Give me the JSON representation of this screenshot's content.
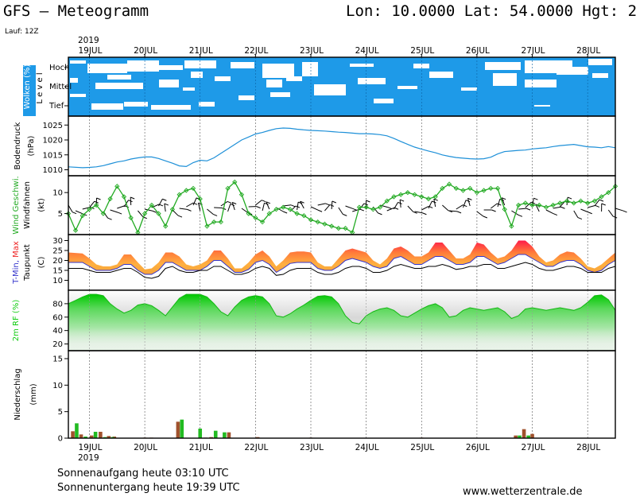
{
  "header": {
    "title": "GFS – Meteogramm",
    "location": "Lon: 10.0000  Lat: 54.0000  Hgt: 2",
    "run": "Lauf: 12Z",
    "year_top": "2019",
    "year_bottom": "2019"
  },
  "footer": {
    "sunrise": "Sonnenaufgang heute 03:10 UTC",
    "sunset": "Sonnenuntergang heute 19:39 UTC",
    "website": "www.wetterzentrale.de"
  },
  "colors": {
    "cloud": "#1e9ae8",
    "pressure": "#1e90d8",
    "wind": "#22aa22",
    "dew": "#000000",
    "tmin": "#3333cc",
    "humidity": "#11cc11",
    "precip_brown": "#a0522d",
    "precip_green": "#22bb22"
  },
  "chart_data": [
    {
      "type": "heatmap",
      "name": "clouds",
      "ylabel": "Wolken (%)",
      "ylabel2": "L e v e l",
      "levels": [
        "Hoch",
        "Mittel",
        "Tief"
      ],
      "x_start_day": 19,
      "x_end_day": 28,
      "categories": [
        "19JUL",
        "20JUL",
        "21JUL",
        "22JUL",
        "23JUL",
        "24JUL",
        "25JUL",
        "26JUL",
        "27JUL",
        "28JUL"
      ]
    },
    {
      "type": "line",
      "name": "pressure",
      "ylabel": "Bodendruck",
      "ylabel2": "(hPa)",
      "ylim": [
        1008,
        1028
      ],
      "yticks": [
        1010,
        1015,
        1020,
        1025
      ],
      "x": [
        18.62,
        18.875,
        19.0,
        19.125,
        19.25,
        19.375,
        19.5,
        19.625,
        19.75,
        19.875,
        20.0,
        20.125,
        20.25,
        20.375,
        20.5,
        20.625,
        20.75,
        20.875,
        21.0,
        21.125,
        21.25,
        21.375,
        21.5,
        21.625,
        21.75,
        21.875,
        22.0,
        22.125,
        22.25,
        22.375,
        22.5,
        22.625,
        22.75,
        22.875,
        23.0,
        23.125,
        23.25,
        23.375,
        23.5,
        23.625,
        23.75,
        23.875,
        24.0,
        24.125,
        24.25,
        24.375,
        24.5,
        24.625,
        24.75,
        24.875,
        25.0,
        25.125,
        25.25,
        25.375,
        25.5,
        25.625,
        25.75,
        25.875,
        26.0,
        26.125,
        26.25,
        26.375,
        26.5,
        26.625,
        26.75,
        26.875,
        27.0,
        27.125,
        27.25,
        27.375,
        27.5,
        27.625,
        27.75,
        27.875,
        28.0,
        28.125,
        28.25,
        28.375,
        28.5
      ],
      "values": [
        1011,
        1010.7,
        1010.8,
        1011,
        1011.4,
        1012,
        1012.6,
        1013,
        1013.6,
        1014,
        1014.3,
        1014.3,
        1013.8,
        1013,
        1012.2,
        1011.3,
        1011.1,
        1012.4,
        1013.2,
        1013,
        1014,
        1015.5,
        1017,
        1018.5,
        1020,
        1021,
        1022,
        1022.5,
        1023.2,
        1023.8,
        1024,
        1023.9,
        1023.6,
        1023.4,
        1023.2,
        1023.1,
        1023,
        1022.8,
        1022.6,
        1022.5,
        1022.3,
        1022.1,
        1022.1,
        1022,
        1021.8,
        1021.4,
        1020.5,
        1019.5,
        1018.5,
        1017.6,
        1016.9,
        1016.3,
        1015.7,
        1015,
        1014.5,
        1014.1,
        1013.9,
        1013.7,
        1013.6,
        1013.7,
        1014.2,
        1015.3,
        1016.1,
        1016.3,
        1016.5,
        1016.6,
        1017,
        1017.2,
        1017.4,
        1017.8,
        1018.1,
        1018.3,
        1018.5,
        1018.1,
        1017.7,
        1017.6,
        1017.4,
        1017.8,
        1017.4
      ]
    },
    {
      "type": "line",
      "name": "wind",
      "ylabel": "Wind Geschwi.",
      "ylabel2": "Windfahnen",
      "ylabel3": "(kt)",
      "ylim": [
        0,
        14
      ],
      "yticks": [
        5,
        10
      ],
      "x": [
        18.62,
        18.75,
        18.875,
        19.0,
        19.125,
        19.25,
        19.375,
        19.5,
        19.625,
        19.75,
        19.875,
        20.0,
        20.125,
        20.25,
        20.375,
        20.5,
        20.625,
        20.75,
        20.875,
        21.0,
        21.125,
        21.25,
        21.375,
        21.5,
        21.625,
        21.75,
        21.875,
        22.0,
        22.125,
        22.25,
        22.375,
        22.5,
        22.625,
        22.75,
        22.875,
        23.0,
        23.125,
        23.25,
        23.375,
        23.5,
        23.625,
        23.75,
        23.875,
        24.0,
        24.125,
        24.25,
        24.375,
        24.5,
        24.625,
        24.75,
        24.875,
        25.0,
        25.125,
        25.25,
        25.375,
        25.5,
        25.625,
        25.75,
        25.875,
        26.0,
        26.125,
        26.25,
        26.375,
        26.5,
        26.625,
        26.75,
        26.875,
        27.0,
        27.125,
        27.25,
        27.375,
        27.5,
        27.625,
        27.75,
        27.875,
        28.0,
        28.125,
        28.25,
        28.375,
        28.5
      ],
      "values": [
        5,
        1,
        4.5,
        6,
        7,
        5,
        8.5,
        11.5,
        9,
        4,
        0.5,
        5,
        7,
        5,
        2,
        6,
        9.5,
        10.5,
        11,
        8.5,
        2,
        3,
        3,
        11,
        12.5,
        9.5,
        5,
        4,
        3,
        5,
        6,
        6.5,
        6,
        5,
        4.5,
        3.5,
        3,
        2.5,
        2,
        1.5,
        1.5,
        0.5,
        6.5,
        6.5,
        6,
        6.5,
        8,
        9,
        9.5,
        10,
        9.5,
        9,
        8.5,
        9,
        11,
        12,
        11,
        10.5,
        11,
        10,
        10.5,
        11,
        11,
        6,
        2,
        7,
        7.5,
        7,
        7,
        6.5,
        7,
        7.5,
        8,
        7.5,
        8,
        7.5,
        8,
        9,
        10,
        11.5
      ]
    },
    {
      "type": "area",
      "name": "temperature",
      "ylabel": "T-Min, Max",
      "ylabel2": "Taupunkt",
      "ylabel3": "(C)",
      "ylim": [
        5,
        33
      ],
      "yticks": [
        10,
        15,
        20,
        25,
        30
      ],
      "x": [
        18.62,
        18.875,
        19.0,
        19.125,
        19.25,
        19.375,
        19.5,
        19.625,
        19.75,
        19.875,
        20.0,
        20.125,
        20.25,
        20.375,
        20.5,
        20.625,
        20.75,
        20.875,
        21.0,
        21.125,
        21.25,
        21.375,
        21.5,
        21.625,
        21.75,
        21.875,
        22.0,
        22.125,
        22.25,
        22.375,
        22.5,
        22.625,
        22.75,
        22.875,
        23.0,
        23.125,
        23.25,
        23.375,
        23.5,
        23.625,
        23.75,
        23.875,
        24.0,
        24.125,
        24.25,
        24.375,
        24.5,
        24.625,
        24.75,
        24.875,
        25.0,
        25.125,
        25.25,
        25.375,
        25.5,
        25.625,
        25.75,
        25.875,
        26.0,
        26.125,
        26.25,
        26.375,
        26.5,
        26.625,
        26.75,
        26.875,
        27.0,
        27.125,
        27.25,
        27.375,
        27.5,
        27.625,
        27.75,
        27.875,
        28.0,
        28.125,
        28.25,
        28.375,
        28.5
      ],
      "series": [
        {
          "name": "T-Max",
          "values": [
            24,
            23.5,
            21,
            18,
            17,
            17,
            18,
            23,
            23,
            19,
            15.5,
            16,
            19,
            24,
            24,
            22,
            18,
            17,
            18,
            20,
            25,
            25,
            21,
            16,
            16,
            19,
            23,
            25,
            22,
            17,
            20,
            24,
            24.5,
            24.5,
            24,
            19,
            17,
            17,
            21,
            25,
            26,
            25,
            24,
            20,
            18,
            21,
            26,
            27,
            25,
            22,
            22,
            24,
            29,
            29,
            25,
            21,
            21,
            23,
            29,
            28,
            24,
            21,
            22,
            25,
            30,
            30,
            27,
            22,
            19,
            20,
            23,
            24.5,
            24,
            21,
            17,
            16,
            18,
            21,
            24
          ]
        },
        {
          "name": "T-Min",
          "values": [
            19,
            19,
            17,
            15,
            15,
            15,
            16,
            18,
            18,
            15,
            13,
            13,
            15,
            19,
            19,
            17,
            15,
            15,
            15,
            17,
            20,
            20,
            17,
            14,
            14,
            15.5,
            19,
            20,
            18,
            14,
            16,
            18.5,
            19,
            19,
            19,
            16,
            15,
            15,
            17,
            20,
            21,
            20,
            19,
            17,
            16,
            17,
            21,
            22,
            20,
            18,
            18,
            20,
            22,
            22,
            20,
            18,
            18,
            19,
            22,
            22,
            20,
            18,
            19,
            21,
            23,
            23,
            21,
            19,
            17,
            17,
            19,
            20,
            20,
            18,
            15,
            14,
            15,
            18,
            20
          ]
        },
        {
          "name": "Taupunkt",
          "values": [
            16,
            16,
            15,
            14,
            14,
            14,
            15,
            16,
            16,
            14,
            11.5,
            11,
            12,
            16,
            17,
            15,
            14,
            14,
            15,
            15,
            17,
            17,
            15,
            13,
            13,
            14,
            16,
            17,
            16,
            12.5,
            13,
            15,
            16,
            16,
            16,
            14,
            13,
            13,
            14,
            16,
            17,
            17,
            16,
            14,
            14,
            15,
            17,
            18,
            17,
            16,
            16,
            17,
            17,
            18,
            17,
            15.5,
            16,
            17,
            17,
            18,
            18,
            16,
            16,
            17,
            18,
            19,
            18,
            16,
            15,
            15,
            16,
            17,
            17,
            16,
            14,
            14,
            14,
            16,
            17
          ]
        }
      ]
    },
    {
      "type": "area",
      "name": "humidity",
      "ylabel": "2m RF (%)",
      "ylim": [
        10,
        100
      ],
      "yticks": [
        20,
        40,
        60,
        80
      ],
      "x": [
        18.62,
        18.75,
        18.875,
        19.0,
        19.125,
        19.25,
        19.375,
        19.5,
        19.625,
        19.75,
        19.875,
        20.0,
        20.125,
        20.25,
        20.375,
        20.5,
        20.625,
        20.75,
        20.875,
        21.0,
        21.125,
        21.25,
        21.375,
        21.5,
        21.625,
        21.75,
        21.875,
        22.0,
        22.125,
        22.25,
        22.375,
        22.5,
        22.625,
        22.75,
        22.875,
        23.0,
        23.125,
        23.25,
        23.375,
        23.5,
        23.625,
        23.75,
        23.875,
        24.0,
        24.125,
        24.25,
        24.375,
        24.5,
        24.625,
        24.75,
        24.875,
        25.0,
        25.125,
        25.25,
        25.375,
        25.5,
        25.625,
        25.75,
        25.875,
        26.0,
        26.125,
        26.25,
        26.375,
        26.5,
        26.625,
        26.75,
        26.875,
        27.0,
        27.125,
        27.25,
        27.375,
        27.5,
        27.625,
        27.75,
        27.875,
        28.0,
        28.125,
        28.25,
        28.375,
        28.5
      ],
      "values": [
        80,
        85,
        90,
        94,
        94,
        92,
        80,
        72,
        66,
        70,
        78,
        80,
        77,
        70,
        62,
        75,
        88,
        94,
        94,
        94,
        90,
        80,
        68,
        62,
        75,
        85,
        90,
        92,
        90,
        80,
        62,
        60,
        65,
        72,
        78,
        85,
        91,
        92,
        90,
        80,
        62,
        52,
        50,
        62,
        68,
        72,
        74,
        70,
        62,
        60,
        66,
        72,
        77,
        80,
        74,
        60,
        62,
        70,
        74,
        72,
        70,
        72,
        74,
        68,
        58,
        62,
        72,
        74,
        72,
        70,
        72,
        74,
        72,
        70,
        74,
        82,
        92,
        93,
        86,
        70
      ]
    },
    {
      "type": "bar",
      "name": "precipitation",
      "ylabel": "Niederschlag",
      "ylabel2": "(mm)",
      "ylim": [
        0,
        16.5
      ],
      "yticks": [
        0,
        5,
        10,
        15
      ],
      "categories": [
        "19JUL",
        "20JUL",
        "21JUL",
        "22JUL",
        "23JUL",
        "24JUL",
        "25JUL",
        "26JUL",
        "27JUL",
        "28JUL"
      ],
      "series": [
        {
          "name": "brown",
          "x": [
            18.7,
            18.85,
            19.04,
            19.2,
            19.35,
            19.45,
            20.0,
            20.12,
            20.6,
            21.1,
            21.2,
            21.52,
            22.04,
            23.0,
            25.0,
            26.7,
            26.85,
            27.0
          ],
          "values": [
            1.3,
            0.7,
            0.5,
            1.2,
            0.4,
            0.3,
            0.1,
            0.1,
            3.1,
            0.1,
            0.2,
            1.1,
            0.2,
            0.1,
            0.1,
            0.5,
            1.7,
            0.8
          ]
        },
        {
          "name": "green",
          "x": [
            18.77,
            18.93,
            19.11,
            19.28,
            19.42,
            20.67,
            21.0,
            21.28,
            21.44,
            26.77,
            26.93
          ],
          "values": [
            2.8,
            0.3,
            1.2,
            0.2,
            0.2,
            3.5,
            1.8,
            1.4,
            1.1,
            0.5,
            0.5
          ]
        }
      ]
    }
  ]
}
